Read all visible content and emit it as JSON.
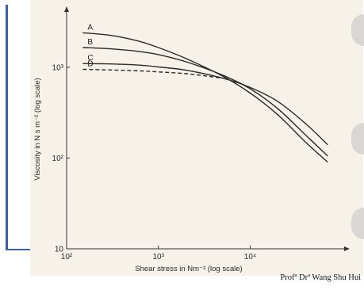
{
  "credit": "Profª Drª Wang Shu Hui",
  "chart_data": {
    "type": "line",
    "xscale": "log",
    "yscale": "log",
    "xlim": [
      100,
      80000
    ],
    "ylim": [
      10,
      4000
    ],
    "xlabel": "Shear stress in Nm⁻² (log scale)",
    "ylabel": "Viscosity in N s m⁻² (log scale)",
    "x_ticks": [
      {
        "value": 100,
        "label": "10²"
      },
      {
        "value": 1000,
        "label": "10³"
      },
      {
        "value": 10000,
        "label": "10⁴"
      }
    ],
    "y_ticks": [
      {
        "value": 10,
        "label": "10"
      },
      {
        "value": 100,
        "label": "10²"
      },
      {
        "value": 1000,
        "label": "10³"
      }
    ],
    "series": [
      {
        "name": "A",
        "style": "solid",
        "x": [
          150,
          300,
          600,
          1000,
          2000,
          5000,
          10000,
          20000,
          40000,
          70000
        ],
        "y": [
          2400,
          2250,
          1950,
          1650,
          1250,
          800,
          520,
          300,
          150,
          90
        ]
      },
      {
        "name": "B",
        "style": "solid",
        "x": [
          150,
          300,
          600,
          1000,
          2000,
          5000,
          10000,
          20000,
          40000,
          70000
        ],
        "y": [
          1650,
          1600,
          1500,
          1380,
          1150,
          820,
          580,
          350,
          180,
          105
        ]
      },
      {
        "name": "C",
        "style": "solid",
        "x": [
          150,
          300,
          600,
          1000,
          2000,
          5000,
          10000,
          20000,
          40000,
          70000
        ],
        "y": [
          1100,
          1090,
          1060,
          1010,
          930,
          760,
          600,
          420,
          240,
          140
        ]
      },
      {
        "name": "D",
        "style": "dashed",
        "x": [
          150,
          300,
          600,
          1000,
          2000,
          5000
        ],
        "y": [
          950,
          935,
          915,
          890,
          850,
          760
        ]
      }
    ]
  }
}
